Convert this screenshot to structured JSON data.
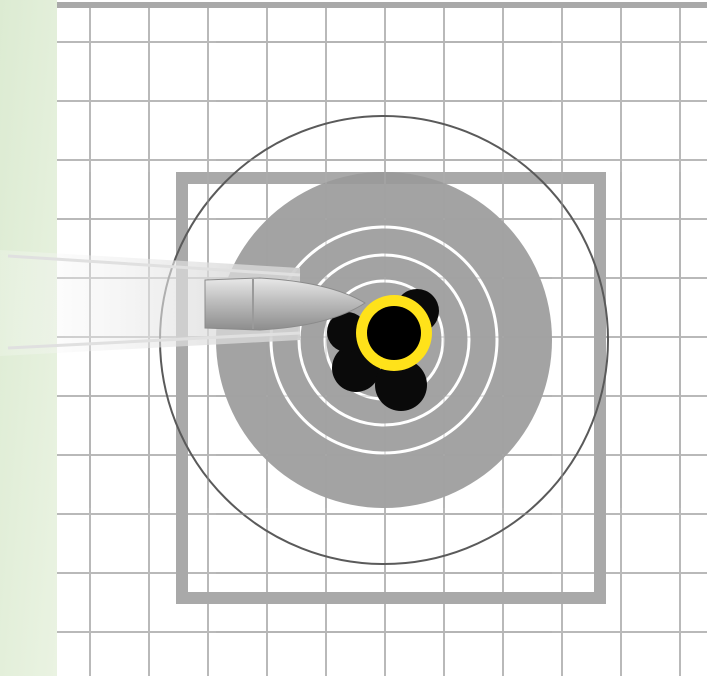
{
  "scene": {
    "background_color": "#ffffff",
    "side_panel_colors": [
      "#dcebd2",
      "#eaf3e2"
    ],
    "grid_line_color": "#b9b9b9",
    "frame_color": "#a9a9a9",
    "outer_ring_color": "#5a5a5a",
    "target_disc_color": "#999999",
    "scoring_ring_color": "#ffffff",
    "bullseye_color": "#000000",
    "highlight_ring_color": "#ffe21a",
    "bullet_holes": 5,
    "bullet_colors": [
      "#e8e8e8",
      "#bdbdbd",
      "#8d8d8d"
    ]
  }
}
